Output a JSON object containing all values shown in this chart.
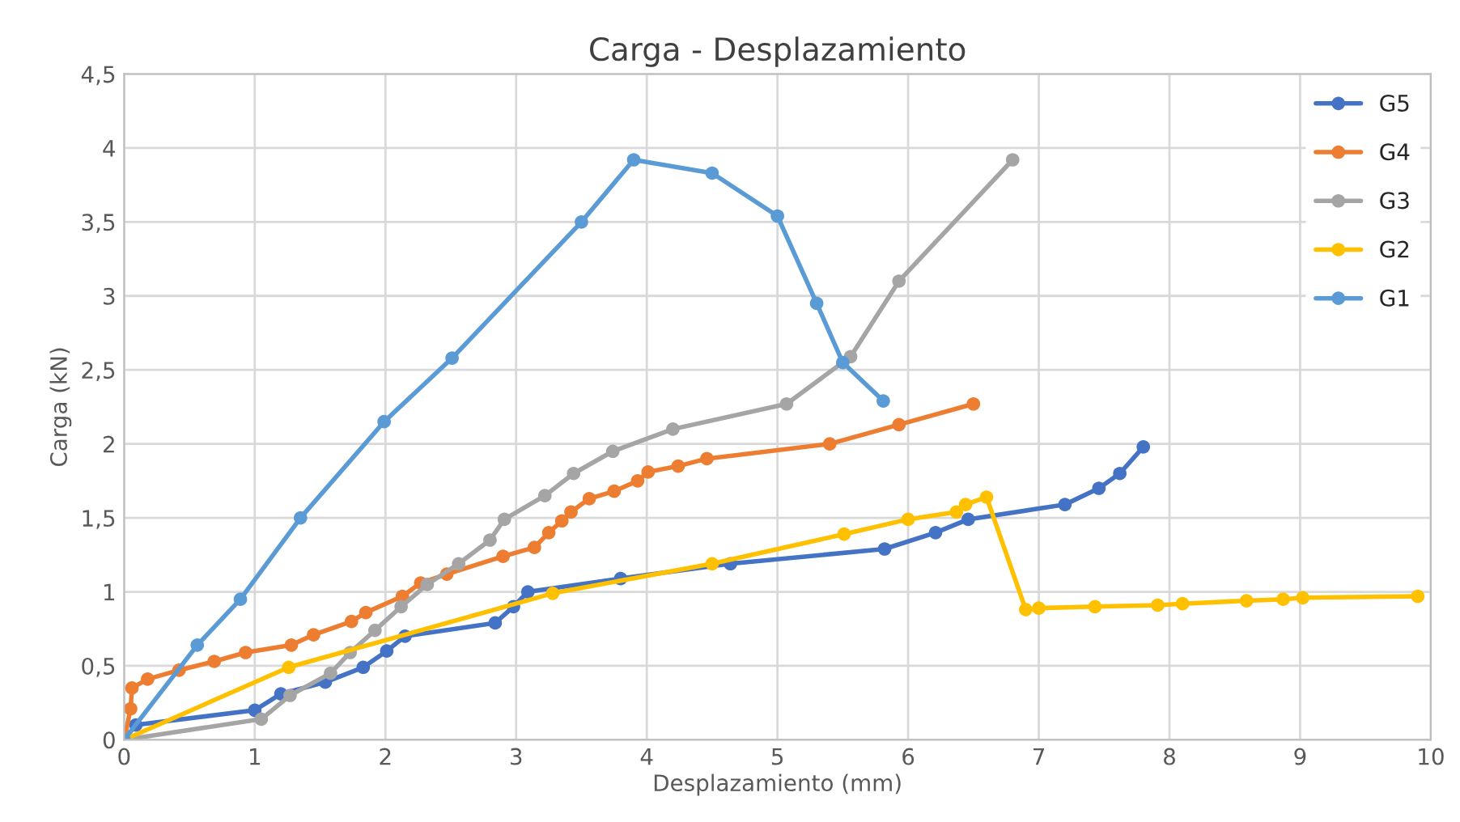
{
  "chart_data": {
    "type": "line",
    "title": "Carga - Desplazamiento",
    "xlabel": "Desplazamiento (mm)",
    "ylabel": "Carga (kN)",
    "xlim": [
      0,
      10
    ],
    "xticks": [
      0,
      1,
      2,
      3,
      4,
      5,
      6,
      7,
      8,
      9,
      10
    ],
    "ylim": [
      0,
      4.5
    ],
    "yticks": [
      0,
      {
        "value": 0.5,
        "label": "0,5"
      },
      1,
      {
        "value": 1.5,
        "label": "1,5"
      },
      2,
      {
        "value": 2.5,
        "label": "2,5"
      },
      3,
      {
        "value": 3.5,
        "label": "3,5"
      },
      4,
      {
        "value": 4.5,
        "label": "4,5"
      }
    ],
    "grid": true,
    "legend": "top right",
    "marker": "circle",
    "line_style": "solid",
    "series": [
      {
        "name": "G5",
        "color": "#4472c4",
        "x": [
          0,
          0.09,
          1.0,
          1.2,
          1.54,
          1.83,
          2.01,
          2.15,
          2.84,
          2.98,
          3.09,
          3.8,
          4.64,
          5.82,
          6.21,
          6.46,
          7.2,
          7.46,
          7.62,
          7.8
        ],
        "values": [
          0,
          0.1,
          0.2,
          0.31,
          0.39,
          0.49,
          0.6,
          0.7,
          0.79,
          0.9,
          1.0,
          1.09,
          1.19,
          1.29,
          1.4,
          1.49,
          1.59,
          1.7,
          1.8,
          1.98
        ]
      },
      {
        "name": "G4",
        "color": "#ed7d31",
        "x": [
          0,
          0.05,
          0.06,
          0.18,
          0.42,
          0.69,
          0.93,
          1.28,
          1.45,
          1.74,
          1.85,
          2.13,
          2.27,
          2.47,
          2.9,
          3.14,
          3.25,
          3.35,
          3.42,
          3.56,
          3.75,
          3.93,
          4.01,
          4.24,
          4.46,
          5.4,
          5.93,
          6.5
        ],
        "values": [
          0,
          0.21,
          0.35,
          0.41,
          0.47,
          0.53,
          0.59,
          0.64,
          0.71,
          0.8,
          0.86,
          0.97,
          1.06,
          1.12,
          1.24,
          1.3,
          1.4,
          1.48,
          1.54,
          1.63,
          1.68,
          1.75,
          1.81,
          1.85,
          1.9,
          2.0,
          2.13,
          2.27
        ]
      },
      {
        "name": "G3",
        "color": "#a5a5a5",
        "x": [
          0,
          1.05,
          1.27,
          1.58,
          1.73,
          1.92,
          2.12,
          2.32,
          2.56,
          2.8,
          2.91,
          3.22,
          3.44,
          3.74,
          4.2,
          5.07,
          5.56,
          5.93,
          6.8
        ],
        "values": [
          0,
          0.14,
          0.3,
          0.45,
          0.59,
          0.74,
          0.9,
          1.05,
          1.19,
          1.35,
          1.49,
          1.65,
          1.8,
          1.95,
          2.1,
          2.27,
          2.59,
          3.1,
          3.92
        ]
      },
      {
        "name": "G2",
        "color": "#ffc000",
        "x": [
          0,
          1.26,
          3.28,
          4.5,
          5.51,
          6.0,
          6.37,
          6.44,
          6.6,
          6.9,
          7.0,
          7.43,
          7.91,
          8.1,
          8.59,
          8.87,
          9.02,
          9.9
        ],
        "values": [
          0,
          0.49,
          0.99,
          1.19,
          1.39,
          1.49,
          1.54,
          1.59,
          1.64,
          0.88,
          0.89,
          0.9,
          0.91,
          0.92,
          0.94,
          0.95,
          0.96,
          0.97
        ]
      },
      {
        "name": "G1",
        "color": "#5b9bd5",
        "x": [
          0,
          0.56,
          0.89,
          1.35,
          1.99,
          2.51,
          3.5,
          3.9,
          4.5,
          5.0,
          5.3,
          5.5,
          5.81
        ],
        "values": [
          0,
          0.64,
          0.95,
          1.5,
          2.15,
          2.58,
          3.5,
          3.92,
          3.83,
          3.54,
          2.95,
          2.55,
          2.29
        ]
      }
    ]
  }
}
